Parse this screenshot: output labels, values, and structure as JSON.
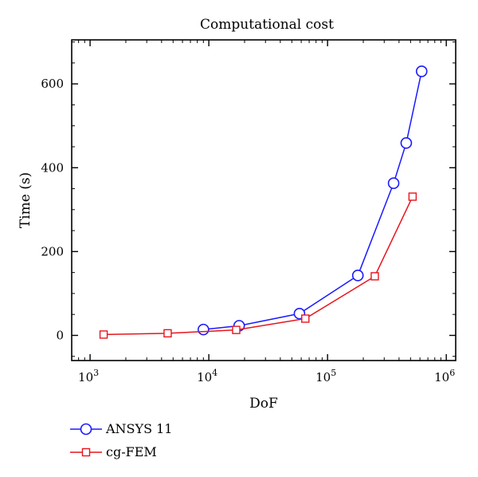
{
  "chart_data": {
    "type": "line",
    "title": "Computational cost",
    "xlabel": "DoF",
    "ylabel": "Time (s)",
    "x_scale": "log",
    "xlim": [
      700,
      1200000
    ],
    "ylim": [
      -60,
      705
    ],
    "x_ticks": [
      {
        "value": 1000,
        "base": "10",
        "exp": "3"
      },
      {
        "value": 10000,
        "base": "10",
        "exp": "4"
      },
      {
        "value": 100000,
        "base": "10",
        "exp": "5"
      },
      {
        "value": 1000000,
        "base": "10",
        "exp": "6"
      }
    ],
    "y_ticks": [
      0,
      200,
      400,
      600
    ],
    "grid": false,
    "legend_position": "bottom-left, below plot",
    "series": [
      {
        "name": "ANSYS 11",
        "color": "#1a1aff",
        "marker": "circle",
        "x": [
          9000,
          18000,
          58000,
          180000,
          360000,
          460000,
          620000
        ],
        "y": [
          14,
          23,
          52,
          143,
          363,
          459,
          630
        ]
      },
      {
        "name": "cg-FEM",
        "color": "#e8141c",
        "marker": "square",
        "x": [
          1300,
          4500,
          17000,
          65000,
          250000,
          520000
        ],
        "y": [
          2,
          5,
          13,
          40,
          141,
          331
        ]
      }
    ]
  }
}
